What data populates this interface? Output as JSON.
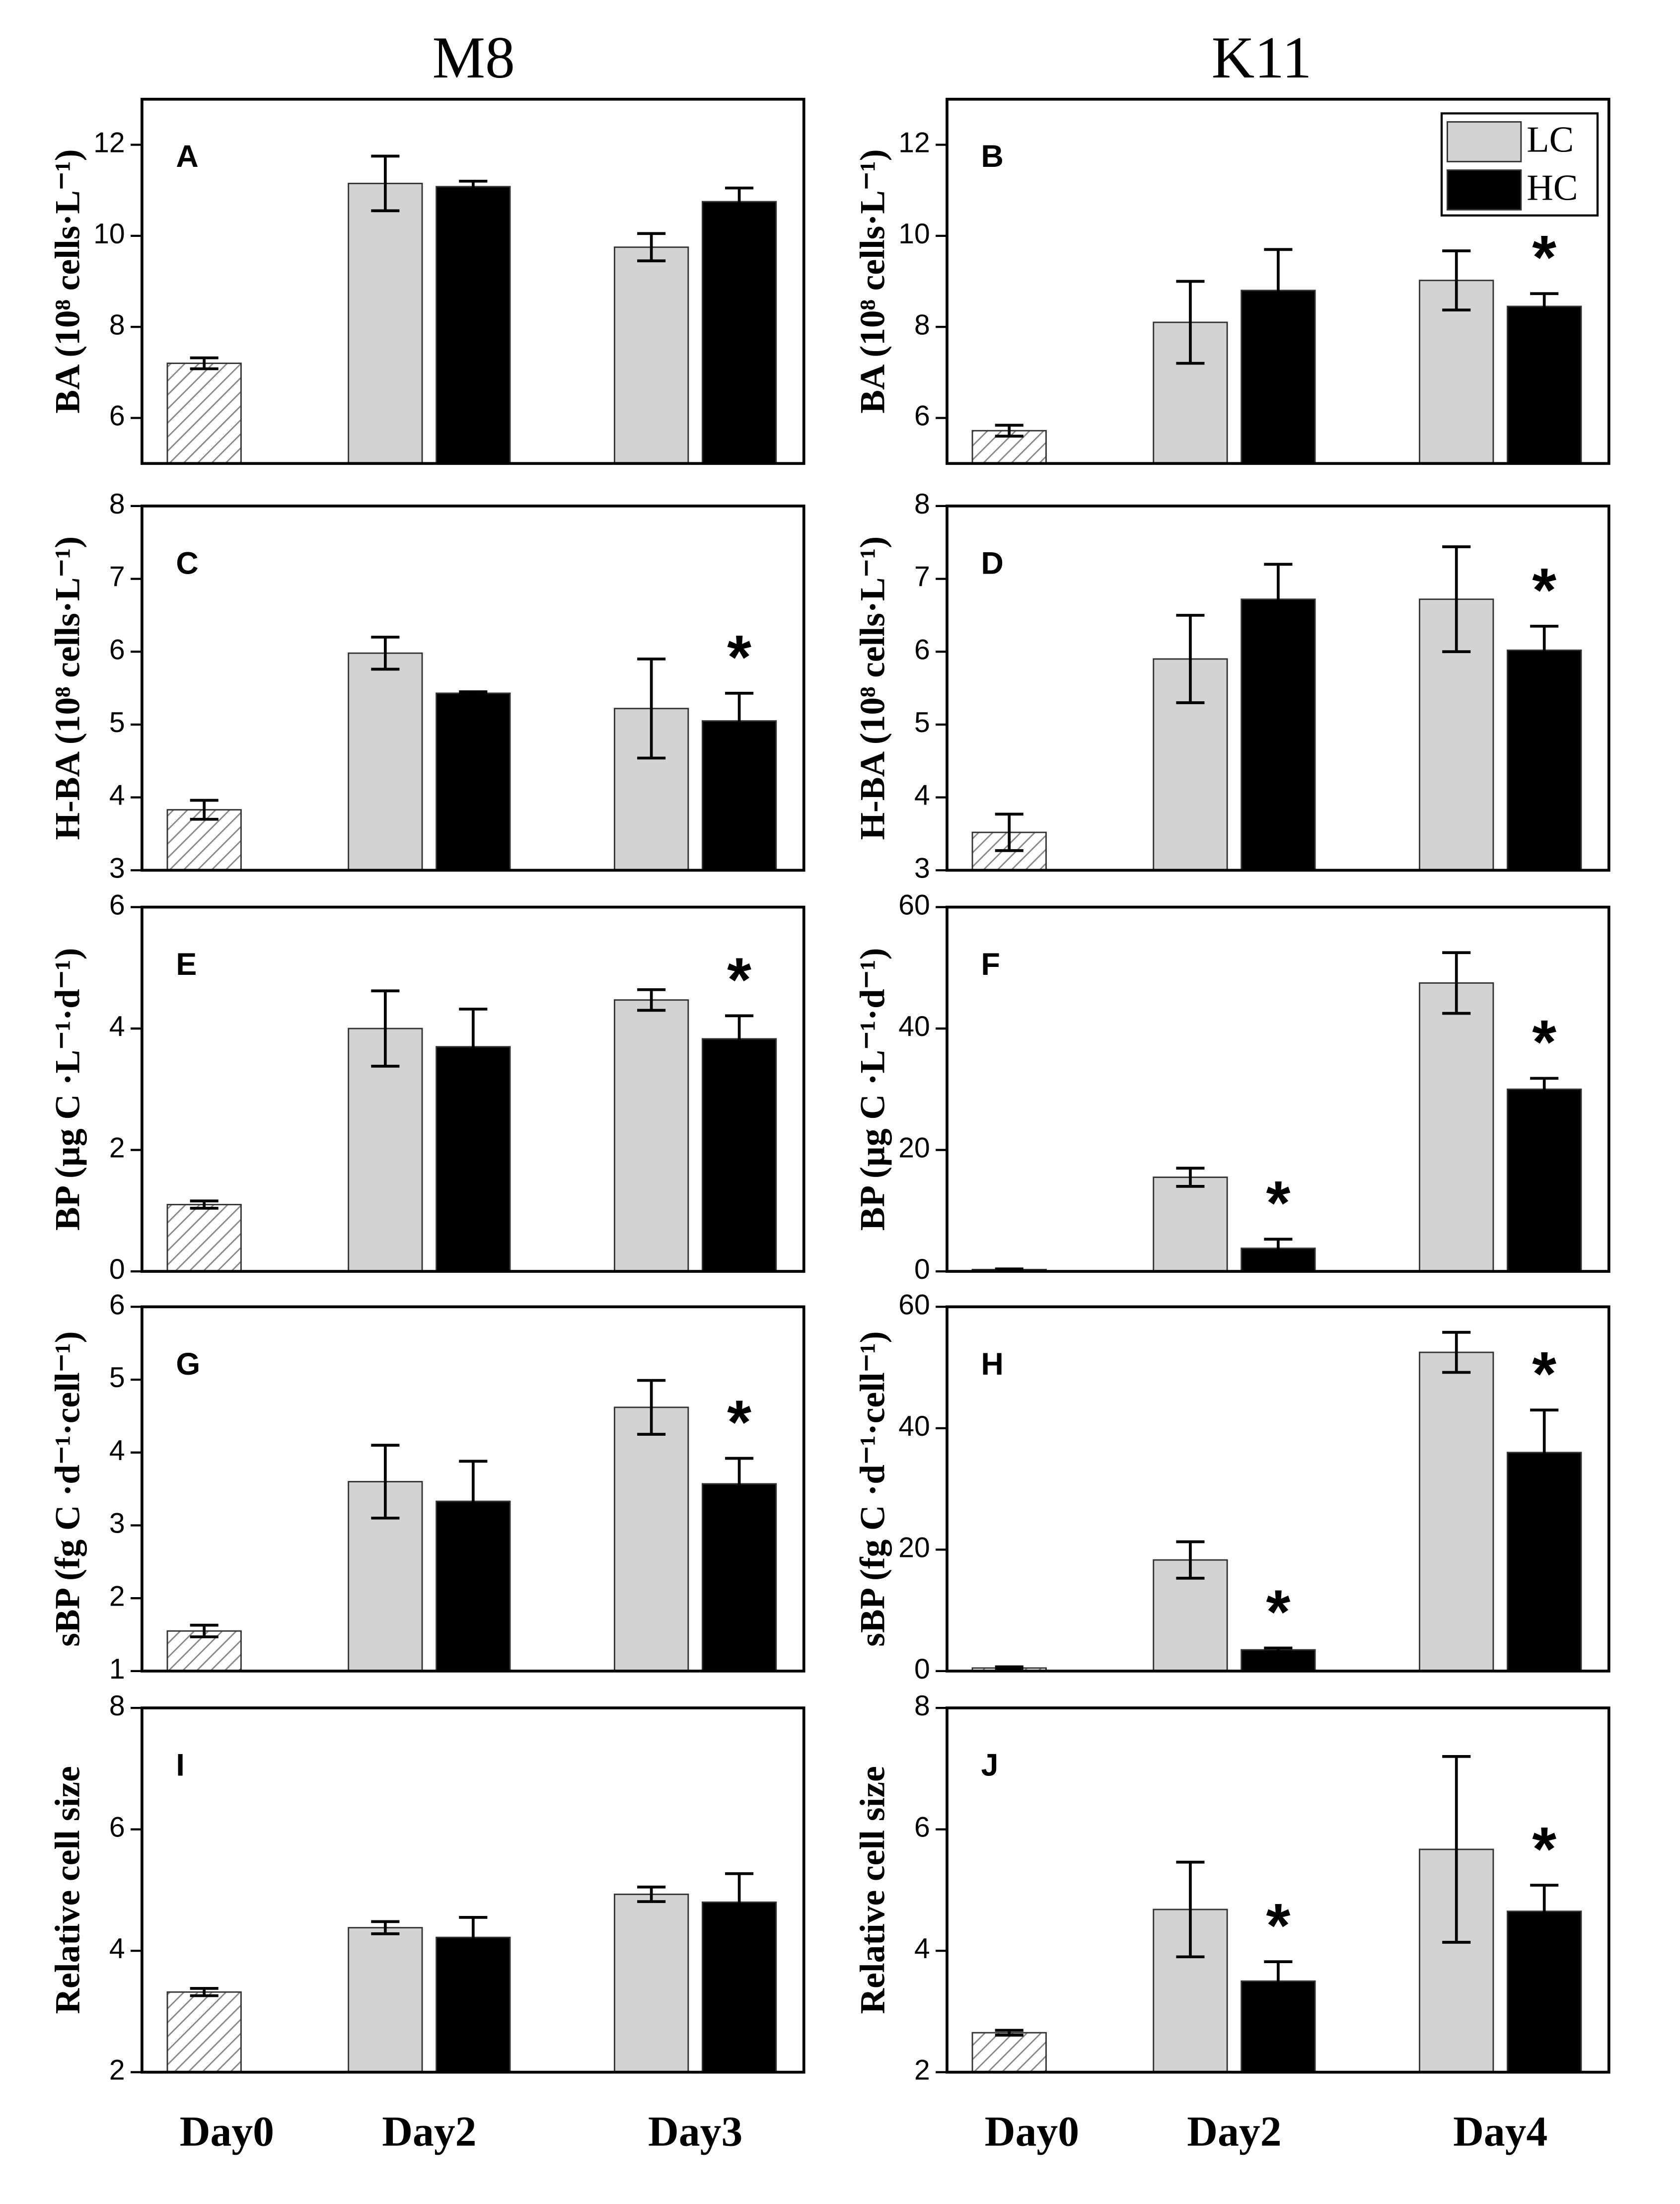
{
  "column_titles": [
    "M8",
    "K11"
  ],
  "chart_data": [
    {
      "type": "bar",
      "annotation": "A",
      "ylabel": "BA (10⁸ cells·L⁻¹)",
      "ylim": [
        5,
        13
      ],
      "yticks": [
        6,
        8,
        10,
        12
      ],
      "series": [
        {
          "color": "#ffffff",
          "hatch": true,
          "values": [
            7.2,
            null,
            null
          ],
          "errors": [
            0.12,
            null,
            null
          ]
        },
        {
          "name": "LC",
          "color": "#d3d3d3",
          "values": [
            null,
            11.15,
            9.75
          ],
          "errors": [
            null,
            0.6,
            0.3
          ]
        },
        {
          "name": "HC",
          "color": "#000000",
          "values": [
            null,
            11.08,
            10.75
          ],
          "errors": [
            null,
            0.12,
            0.3
          ]
        }
      ]
    },
    {
      "type": "bar",
      "annotation": "B",
      "ylabel": "BA (10⁸ cells·L⁻¹)",
      "ylim": [
        5,
        13
      ],
      "yticks": [
        6,
        8,
        10,
        12
      ],
      "legend": "upper right",
      "series": [
        {
          "color": "#ffffff",
          "hatch": true,
          "values": [
            5.72,
            null,
            null
          ],
          "errors": [
            0.12,
            null,
            null
          ]
        },
        {
          "name": "LC",
          "color": "#d3d3d3",
          "values": [
            null,
            8.1,
            9.02
          ],
          "errors": [
            null,
            0.9,
            0.65
          ]
        },
        {
          "name": "HC",
          "color": "#000000",
          "values": [
            null,
            8.8,
            8.45
          ],
          "errors": [
            null,
            0.9,
            0.28
          ],
          "markers": [
            null,
            null,
            "*"
          ]
        }
      ]
    },
    {
      "type": "bar",
      "annotation": "C",
      "ylabel": "H-BA (10⁸ cells·L⁻¹)",
      "ylim": [
        3,
        8
      ],
      "yticks": [
        3,
        4,
        5,
        6,
        7,
        8
      ],
      "series": [
        {
          "color": "#ffffff",
          "hatch": true,
          "values": [
            3.83,
            null,
            null
          ],
          "errors": [
            0.13,
            null,
            null
          ]
        },
        {
          "name": "LC",
          "color": "#d3d3d3",
          "values": [
            null,
            5.98,
            5.22
          ],
          "errors": [
            null,
            0.22,
            0.68
          ]
        },
        {
          "name": "HC",
          "color": "#000000",
          "values": [
            null,
            5.43,
            5.05
          ],
          "errors": [
            null,
            0.02,
            0.38
          ],
          "markers": [
            null,
            null,
            "*"
          ]
        }
      ]
    },
    {
      "type": "bar",
      "annotation": "D",
      "ylabel": "H-BA (10⁸ cells·L⁻¹)",
      "ylim": [
        3,
        8
      ],
      "yticks": [
        3,
        4,
        5,
        6,
        7,
        8
      ],
      "series": [
        {
          "color": "#ffffff",
          "hatch": true,
          "values": [
            3.52,
            null,
            null
          ],
          "errors": [
            0.25,
            null,
            null
          ]
        },
        {
          "name": "LC",
          "color": "#d3d3d3",
          "values": [
            null,
            5.9,
            6.72
          ],
          "errors": [
            null,
            0.6,
            0.72
          ]
        },
        {
          "name": "HC",
          "color": "#000000",
          "values": [
            null,
            6.72,
            6.02
          ],
          "errors": [
            null,
            0.48,
            0.33
          ],
          "markers": [
            null,
            null,
            "*"
          ]
        }
      ]
    },
    {
      "type": "bar",
      "annotation": "E",
      "ylabel": "BP (µg C ·L⁻¹·d⁻¹)",
      "ylim": [
        0,
        6
      ],
      "yticks": [
        0,
        2,
        4,
        6
      ],
      "series": [
        {
          "color": "#ffffff",
          "hatch": true,
          "values": [
            1.1,
            null,
            null
          ],
          "errors": [
            0.06,
            null,
            null
          ]
        },
        {
          "name": "LC",
          "color": "#d3d3d3",
          "values": [
            null,
            4.0,
            4.47
          ],
          "errors": [
            null,
            0.62,
            0.17
          ]
        },
        {
          "name": "HC",
          "color": "#000000",
          "values": [
            null,
            3.7,
            3.83
          ],
          "errors": [
            null,
            0.62,
            0.38
          ],
          "markers": [
            null,
            null,
            "*"
          ]
        }
      ]
    },
    {
      "type": "bar",
      "annotation": "F",
      "ylabel": "BP (µg C ·L⁻¹·d⁻¹)",
      "ylim": [
        0,
        60
      ],
      "yticks": [
        0,
        20,
        40,
        60
      ],
      "series": [
        {
          "color": "#ffffff",
          "hatch": true,
          "values": [
            0.3,
            null,
            null
          ],
          "errors": [
            0.1,
            null,
            null
          ]
        },
        {
          "name": "LC",
          "color": "#d3d3d3",
          "values": [
            null,
            15.5,
            47.5
          ],
          "errors": [
            null,
            1.5,
            5
          ]
        },
        {
          "name": "HC",
          "color": "#000000",
          "values": [
            null,
            3.8,
            30
          ],
          "errors": [
            null,
            1.5,
            1.8
          ],
          "markers": [
            null,
            "*",
            "*"
          ]
        }
      ]
    },
    {
      "type": "bar",
      "annotation": "G",
      "ylabel": "sBP (fg C ·d⁻¹·cell⁻¹)",
      "ylim": [
        1,
        6
      ],
      "yticks": [
        1,
        2,
        3,
        4,
        5,
        6
      ],
      "series": [
        {
          "color": "#ffffff",
          "hatch": true,
          "values": [
            1.55,
            null,
            null
          ],
          "errors": [
            0.08,
            null,
            null
          ]
        },
        {
          "name": "LC",
          "color": "#d3d3d3",
          "values": [
            null,
            3.6,
            4.62
          ],
          "errors": [
            null,
            0.5,
            0.37
          ]
        },
        {
          "name": "HC",
          "color": "#000000",
          "values": [
            null,
            3.33,
            3.57
          ],
          "errors": [
            null,
            0.55,
            0.35
          ],
          "markers": [
            null,
            null,
            "*"
          ]
        }
      ]
    },
    {
      "type": "bar",
      "annotation": "H",
      "ylabel": "sBP (fg C ·d⁻¹·cell⁻¹)",
      "ylim": [
        0,
        60
      ],
      "yticks": [
        0,
        20,
        40,
        60
      ],
      "series": [
        {
          "color": "#ffffff",
          "hatch": true,
          "values": [
            0.5,
            null,
            null
          ],
          "errors": [
            0.2,
            null,
            null
          ]
        },
        {
          "name": "LC",
          "color": "#d3d3d3",
          "values": [
            null,
            18.3,
            52.5
          ],
          "errors": [
            null,
            3,
            3.3
          ]
        },
        {
          "name": "HC",
          "color": "#000000",
          "values": [
            null,
            3.5,
            36
          ],
          "errors": [
            null,
            0.3,
            7
          ],
          "markers": [
            null,
            "*",
            "*"
          ]
        }
      ]
    },
    {
      "type": "bar",
      "annotation": "I",
      "ylabel": "Relative cell size",
      "ylim": [
        2,
        8
      ],
      "yticks": [
        2,
        4,
        6,
        8
      ],
      "categories": [
        "Day0",
        "Day2",
        "Day3"
      ],
      "series": [
        {
          "color": "#ffffff",
          "hatch": true,
          "values": [
            3.32,
            null,
            null
          ],
          "errors": [
            0.06,
            null,
            null
          ]
        },
        {
          "name": "LC",
          "color": "#d3d3d3",
          "values": [
            null,
            4.38,
            4.93
          ],
          "errors": [
            null,
            0.1,
            0.12
          ]
        },
        {
          "name": "HC",
          "color": "#000000",
          "values": [
            null,
            4.22,
            4.8
          ],
          "errors": [
            null,
            0.33,
            0.47
          ]
        }
      ]
    },
    {
      "type": "bar",
      "annotation": "J",
      "ylabel": "Relative cell size",
      "ylim": [
        2,
        8
      ],
      "yticks": [
        2,
        4,
        6,
        8
      ],
      "categories": [
        "Day0",
        "Day2",
        "Day4"
      ],
      "series": [
        {
          "color": "#ffffff",
          "hatch": true,
          "values": [
            2.65,
            null,
            null
          ],
          "errors": [
            0.04,
            null,
            null
          ]
        },
        {
          "name": "LC",
          "color": "#d3d3d3",
          "values": [
            null,
            4.68,
            5.67
          ],
          "errors": [
            null,
            0.78,
            1.53
          ]
        },
        {
          "name": "HC",
          "color": "#000000",
          "values": [
            null,
            3.5,
            4.65
          ],
          "errors": [
            null,
            0.32,
            0.43
          ],
          "markers": [
            null,
            "*",
            "*"
          ]
        }
      ]
    }
  ]
}
